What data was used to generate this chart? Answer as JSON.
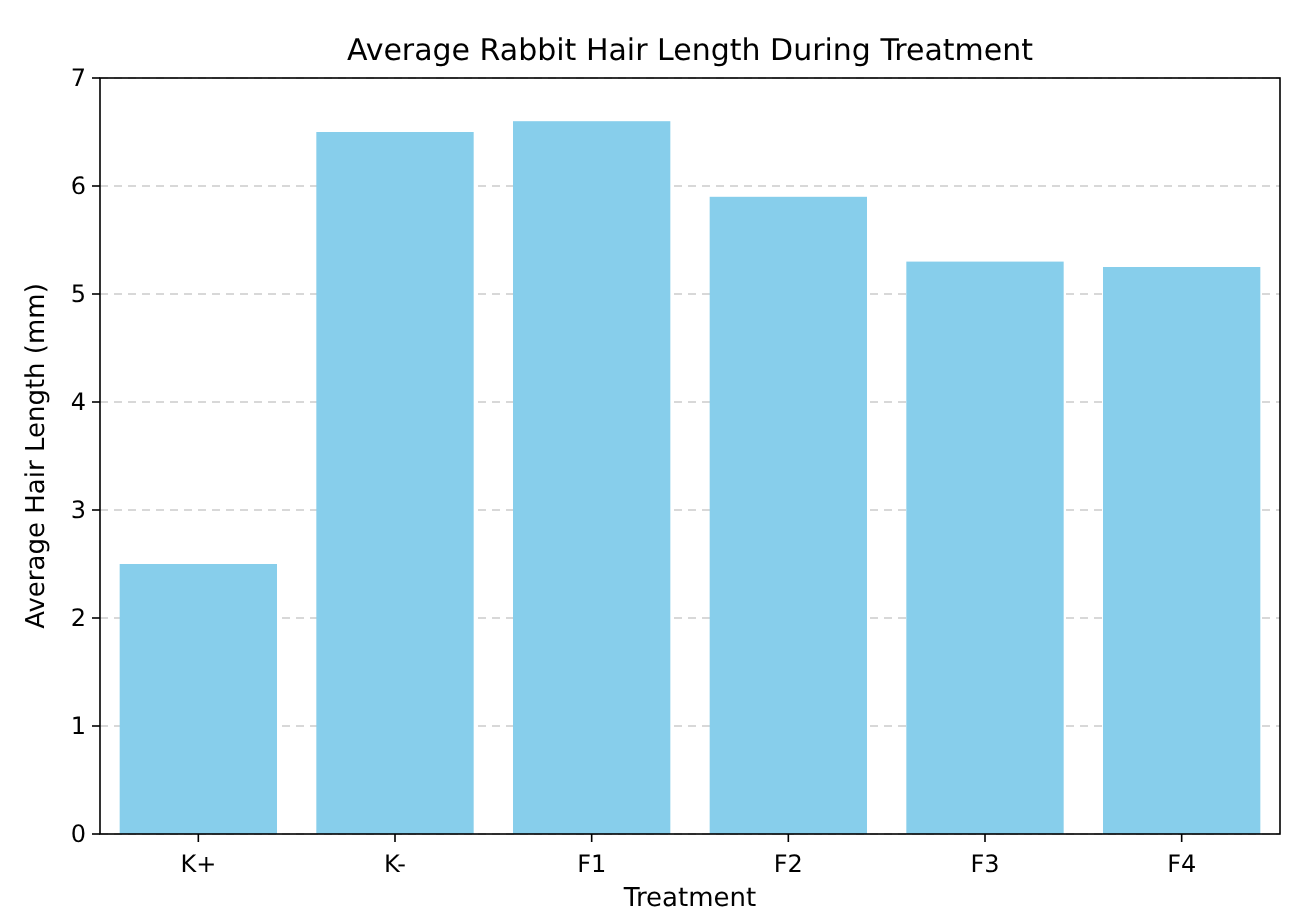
{
  "chart_data": {
    "type": "bar",
    "title": "Average Rabbit Hair Length During Treatment",
    "xlabel": "Treatment",
    "ylabel": "Average Hair Length (mm)",
    "categories": [
      "K+",
      "K-",
      "F1",
      "F2",
      "F3",
      "F4"
    ],
    "values": [
      2.5,
      6.5,
      6.6,
      5.9,
      5.3,
      5.25
    ],
    "color": "#87ceeb",
    "ylim": [
      0,
      7
    ],
    "yticks": [
      0,
      1,
      2,
      3,
      4,
      5,
      6,
      7
    ],
    "grid": "y"
  }
}
